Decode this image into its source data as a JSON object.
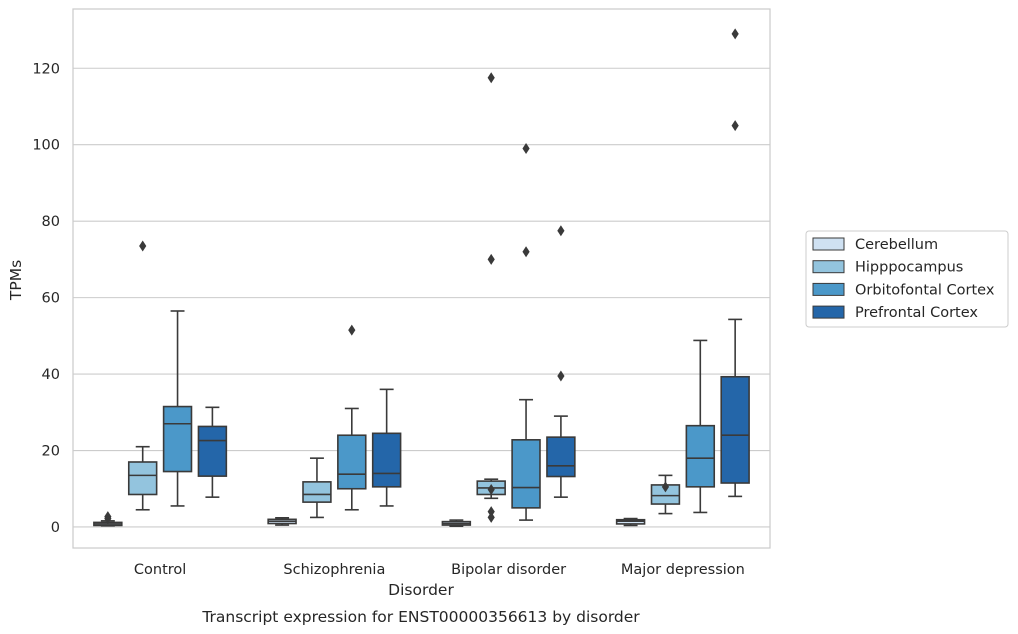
{
  "chart_data": {
    "type": "box",
    "title": "",
    "caption": "Transcript expression for ENST00000356613 by disorder",
    "xlabel": "Disorder",
    "ylabel": "TPMs",
    "ylim": [
      -5.5,
      135.5
    ],
    "yticks": [
      0,
      20,
      40,
      60,
      80,
      100,
      120
    ],
    "grid": "horizontal",
    "legend_position": "right",
    "categories": [
      "Control",
      "Schizophrenia",
      "Bipolar disorder",
      "Major depression"
    ],
    "series": [
      {
        "name": "Cerebellum",
        "color": "#cfe1f2",
        "boxes": [
          {
            "whisker_low": 0.3,
            "q1": 0.4,
            "median": 0.8,
            "q3": 1.2,
            "whisker_high": 1.6,
            "outliers": [
              2.2,
              2.7
            ]
          },
          {
            "whisker_low": 0.5,
            "q1": 0.9,
            "median": 1.5,
            "q3": 2.0,
            "whisker_high": 2.4,
            "outliers": []
          },
          {
            "whisker_low": 0.2,
            "q1": 0.5,
            "median": 0.9,
            "q3": 1.4,
            "whisker_high": 1.8,
            "outliers": []
          },
          {
            "whisker_low": 0.4,
            "q1": 0.8,
            "median": 1.5,
            "q3": 1.9,
            "whisker_high": 2.2,
            "outliers": []
          }
        ]
      },
      {
        "name": "Hipppocampus",
        "color": "#93c4de",
        "boxes": [
          {
            "whisker_low": 4.5,
            "q1": 8.5,
            "median": 13.5,
            "q3": 17.0,
            "whisker_high": 21.0,
            "outliers": [
              73.5
            ]
          },
          {
            "whisker_low": 2.5,
            "q1": 6.5,
            "median": 8.5,
            "q3": 11.8,
            "whisker_high": 18.0,
            "outliers": []
          },
          {
            "whisker_low": 7.5,
            "q1": 8.5,
            "median": 10.2,
            "q3": 12.0,
            "whisker_high": 12.5,
            "outliers": [
              9.8,
              4.0,
              2.5,
              70.0,
              117.5
            ]
          },
          {
            "whisker_low": 3.5,
            "q1": 6.0,
            "median": 8.2,
            "q3": 11.0,
            "whisker_high": 13.5,
            "outliers": [
              10.5
            ]
          }
        ]
      },
      {
        "name": "Orbitofontal Cortex",
        "color": "#4b98c9",
        "boxes": [
          {
            "whisker_low": 5.5,
            "q1": 14.5,
            "median": 27.0,
            "q3": 31.5,
            "whisker_high": 56.5,
            "outliers": []
          },
          {
            "whisker_low": 4.5,
            "q1": 10.0,
            "median": 13.8,
            "q3": 24.0,
            "whisker_high": 31.0,
            "outliers": [
              51.5
            ]
          },
          {
            "whisker_low": 1.8,
            "q1": 5.0,
            "median": 10.3,
            "q3": 22.8,
            "whisker_high": 33.3,
            "outliers": [
              72.0,
              99.0
            ]
          },
          {
            "whisker_low": 3.8,
            "q1": 10.5,
            "median": 18.0,
            "q3": 26.5,
            "whisker_high": 48.8,
            "outliers": []
          }
        ]
      },
      {
        "name": "Prefrontal Cortex",
        "color": "#2466a9",
        "boxes": [
          {
            "whisker_low": 7.8,
            "q1": 13.3,
            "median": 22.6,
            "q3": 26.3,
            "whisker_high": 31.3,
            "outliers": []
          },
          {
            "whisker_low": 5.5,
            "q1": 10.5,
            "median": 14.0,
            "q3": 24.5,
            "whisker_high": 36.0,
            "outliers": []
          },
          {
            "whisker_low": 7.8,
            "q1": 13.2,
            "median": 16.0,
            "q3": 23.5,
            "whisker_high": 29.0,
            "outliers": [
              39.5,
              77.5
            ]
          },
          {
            "whisker_low": 8.0,
            "q1": 11.5,
            "median": 24.0,
            "q3": 39.3,
            "whisker_high": 54.3,
            "outliers": [
              105.0,
              129.0
            ]
          }
        ]
      }
    ]
  }
}
